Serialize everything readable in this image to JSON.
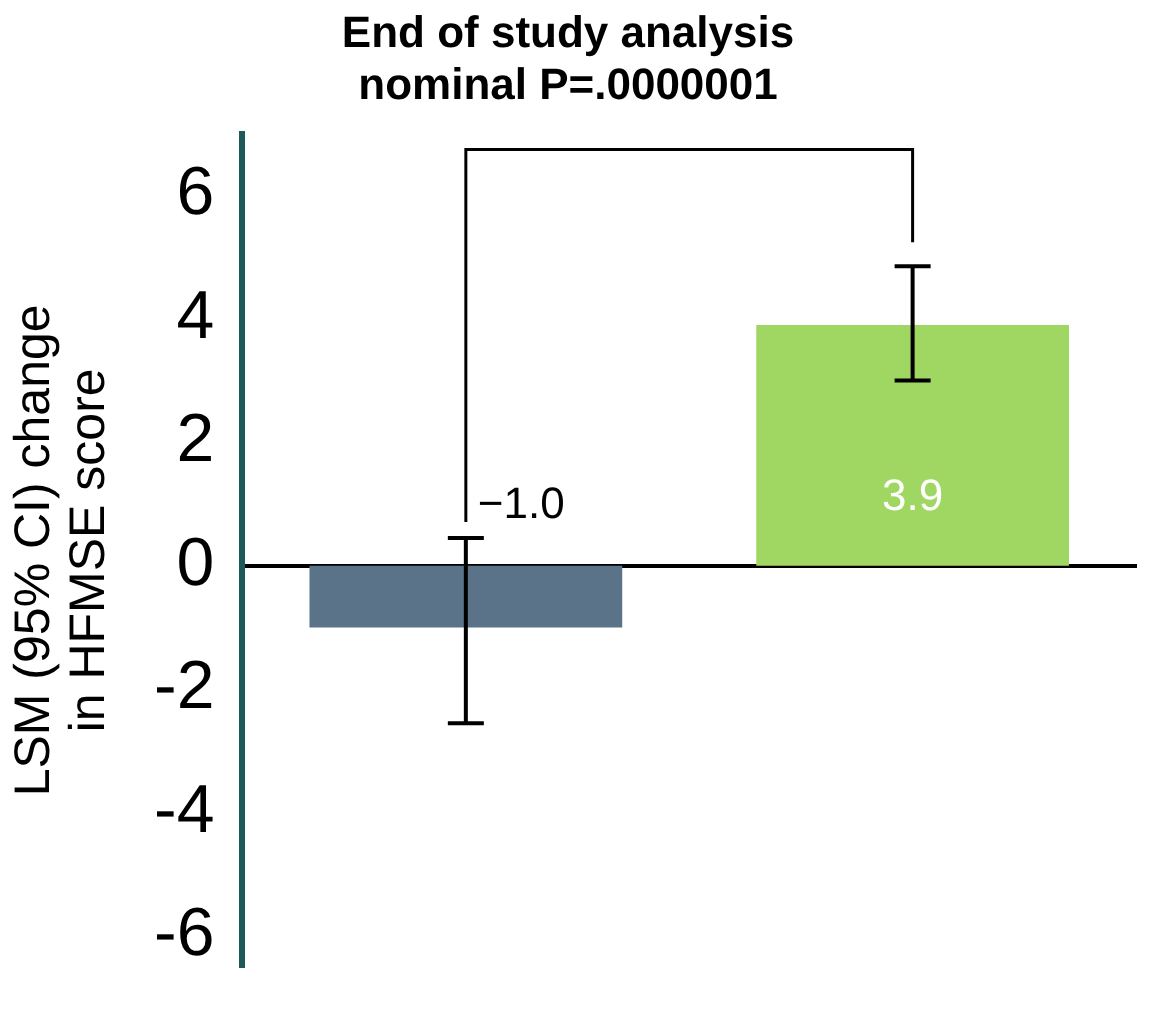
{
  "chart_data": {
    "type": "bar",
    "title": "End of study analysis",
    "subtitle": "nominal P=.0000001",
    "ylabel": "LSM (95% CI) change in HFMSE score",
    "categories": [
      null,
      null
    ],
    "values": [
      -1.0,
      3.9
    ],
    "colors": [
      "#5a7389",
      "#a0d762"
    ],
    "errors": [
      [
        -2.55,
        0.45
      ],
      [
        3.0,
        4.85
      ]
    ],
    "value_labels": [
      "−1.0",
      "3.9"
    ],
    "ylim": [
      -6.5,
      7
    ],
    "yticks": [
      -6,
      -4,
      -2,
      0,
      2,
      4,
      6
    ],
    "legend": false
  }
}
